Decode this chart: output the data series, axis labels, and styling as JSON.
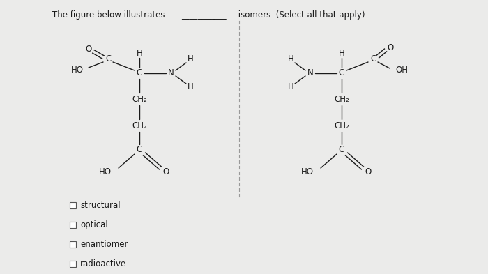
{
  "title_text": "The figure below illustrates",
  "title_blank": "___________",
  "title_suffix": " isomers. (Select all that apply)",
  "bg_color": "#ebebea",
  "text_color": "#1a1a1a",
  "checkboxes": [
    "structural",
    "optical",
    "enantiomer",
    "radioactive"
  ],
  "font_size_title": 8.5,
  "font_size_chem": 8.5,
  "font_size_check": 8.5,
  "lw": 1.0
}
